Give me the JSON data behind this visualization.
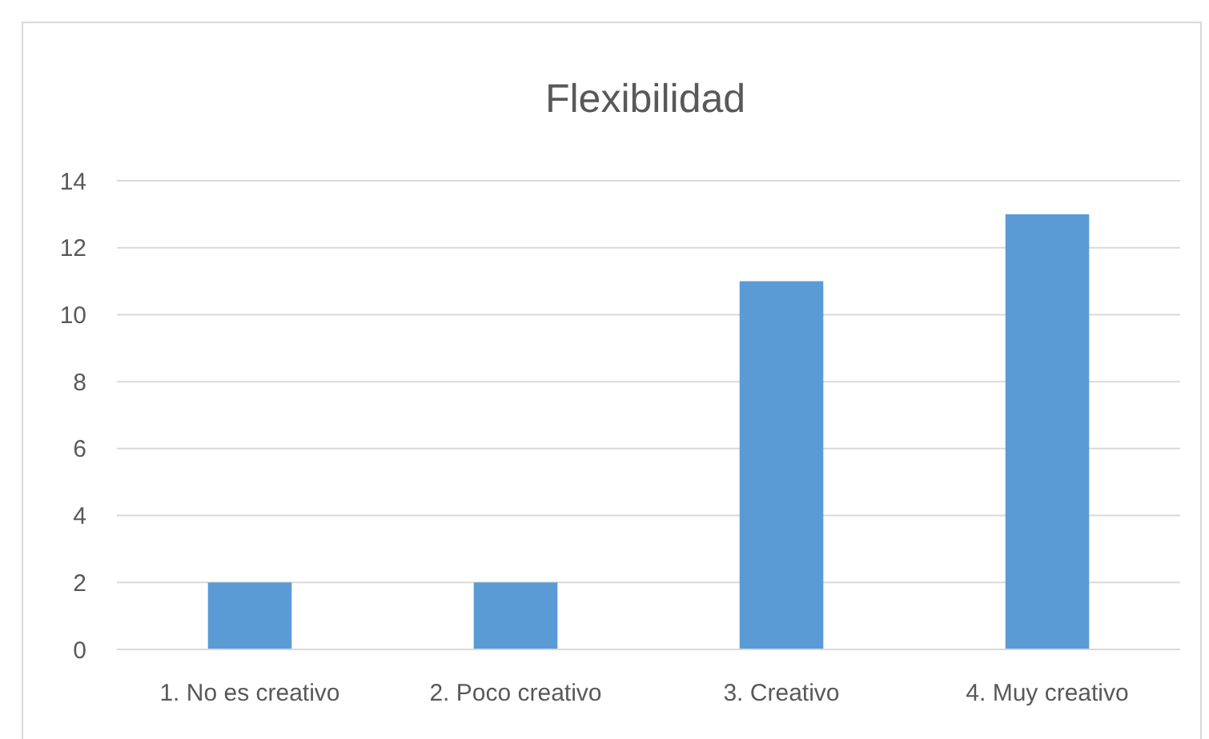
{
  "chart_data": {
    "type": "bar",
    "title": "Flexibilidad",
    "categories": [
      "1. No es creativo",
      "2. Poco creativo",
      "3. Creativo",
      "4. Muy creativo"
    ],
    "values": [
      2,
      2,
      11,
      13
    ],
    "color": "#5b9bd5",
    "ylim": [
      0,
      14
    ],
    "yticks": [
      0,
      2,
      4,
      6,
      8,
      10,
      12,
      14
    ],
    "grid": "y"
  }
}
